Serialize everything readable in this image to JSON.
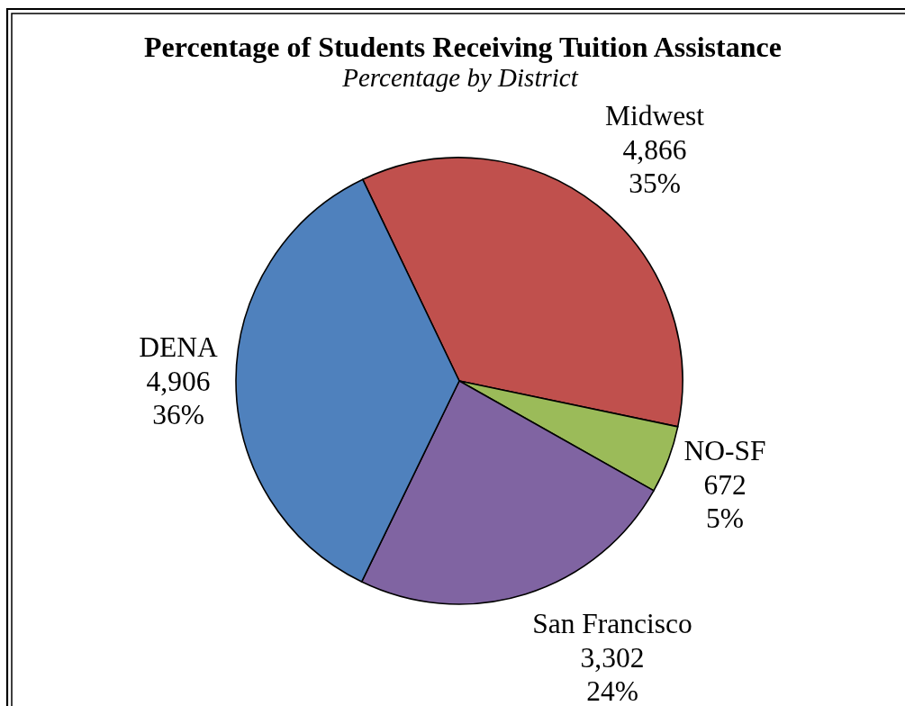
{
  "chart_data": {
    "type": "pie",
    "title": "Percentage of Students Receiving Tuition Assistance",
    "subtitle": "Percentage by District",
    "categories": [
      "Midwest",
      "NO-SF",
      "San Francisco",
      "DENA"
    ],
    "values": [
      4866,
      672,
      3302,
      4906
    ],
    "value_labels": [
      "4,866\n35%",
      "672\n5%",
      "3,302\n24%",
      "4,906\n36%"
    ],
    "colors": [
      "#c0504d",
      "#9bbb59",
      "#8064a2",
      "#4f81bd"
    ],
    "legend": false
  }
}
